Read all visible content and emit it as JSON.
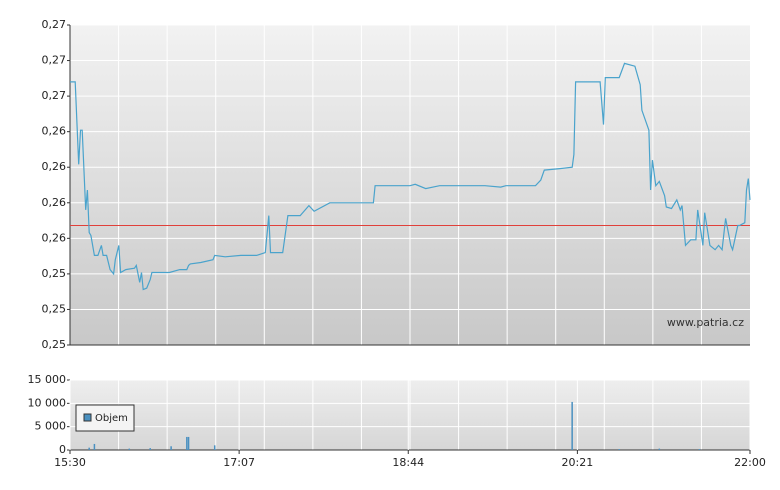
{
  "chart_data": [
    {
      "type": "line",
      "x": [
        "15:30",
        "15:33",
        "15:35",
        "15:36",
        "15:37",
        "15:39",
        "15:40",
        "15:41",
        "15:42",
        "15:44",
        "15:46",
        "15:48",
        "15:49",
        "15:51",
        "15:53",
        "15:55",
        "15:56",
        "15:58",
        "15:59",
        "16:02",
        "16:07",
        "16:08",
        "16:10",
        "16:11",
        "16:12",
        "16:14",
        "16:16",
        "16:17",
        "16:22",
        "16:27",
        "16:33",
        "16:37",
        "16:38",
        "16:39",
        "16:45",
        "16:52",
        "16:53",
        "16:59",
        "17:08",
        "17:17",
        "17:22",
        "17:24",
        "17:25",
        "17:32",
        "17:35",
        "17:42",
        "17:47",
        "17:50",
        "17:59",
        "18:05",
        "18:24",
        "18:25",
        "18:45",
        "18:48",
        "18:54",
        "19:02",
        "19:14",
        "19:28",
        "19:37",
        "19:40",
        "19:57",
        "20:00",
        "20:02",
        "20:11",
        "20:18",
        "20:19",
        "20:20",
        "20:34",
        "20:36",
        "20:37",
        "20:45",
        "20:48",
        "20:54",
        "20:57",
        "20:58",
        "21:02",
        "21:03",
        "21:04",
        "21:06",
        "21:08",
        "21:11",
        "21:12",
        "21:15",
        "21:18",
        "21:20",
        "21:21",
        "21:23",
        "21:26",
        "21:29",
        "21:30",
        "21:33",
        "21:34",
        "21:37",
        "21:40",
        "21:42",
        "21:44",
        "21:46",
        "21:49",
        "21:50",
        "21:53",
        "21:54",
        "21:57",
        "21:58",
        "21:59",
        "22:00"
      ],
      "series": [
        {
          "color": "#4aa3cc",
          "values": [
            0.2685,
            0.2685,
            0.2627,
            0.2651,
            0.2651,
            0.2595,
            0.2609,
            0.2579,
            0.2577,
            0.2563,
            0.2563,
            0.257,
            0.2563,
            0.2563,
            0.2553,
            0.255,
            0.256,
            0.257,
            0.2551,
            0.2553,
            0.2554,
            0.2556,
            0.2544,
            0.2551,
            0.2539,
            0.254,
            0.2546,
            0.2551,
            0.2551,
            0.2551,
            0.2553,
            0.2553,
            0.2556,
            0.2557,
            0.2558,
            0.256,
            0.2563,
            0.2562,
            0.2563,
            0.2563,
            0.2565,
            0.2591,
            0.2565,
            0.2565,
            0.2591,
            0.2591,
            0.2598,
            0.2594,
            0.26,
            0.26,
            0.26,
            0.2612,
            0.2612,
            0.2613,
            0.261,
            0.2612,
            0.2612,
            0.2612,
            0.2611,
            0.2612,
            0.2612,
            0.2616,
            0.2623,
            0.2624,
            0.2625,
            0.2634,
            0.2685,
            0.2685,
            0.2655,
            0.2688,
            0.2688,
            0.2698,
            0.2696,
            0.2683,
            0.2665,
            0.2651,
            0.2609,
            0.263,
            0.2612,
            0.2615,
            0.2605,
            0.2597,
            0.2596,
            0.2602,
            0.2595,
            0.2598,
            0.257,
            0.2574,
            0.2574,
            0.2595,
            0.257,
            0.2593,
            0.257,
            0.2567,
            0.257,
            0.2567,
            0.2589,
            0.257,
            0.2567,
            0.2584,
            0.2584,
            0.2586,
            0.2609,
            0.2617,
            0.2602
          ]
        }
      ],
      "xlim": [
        "15:30",
        "22:00"
      ],
      "ylim": [
        0.25,
        0.2725
      ],
      "yticks": [
        {
          "value": 0.25,
          "label": "0,25"
        },
        {
          "value": 0.2525,
          "label": "0,25"
        },
        {
          "value": 0.255,
          "label": "0,25"
        },
        {
          "value": 0.2575,
          "label": "0,26"
        },
        {
          "value": 0.26,
          "label": "0,26"
        },
        {
          "value": 0.2625,
          "label": "0,26"
        },
        {
          "value": 0.265,
          "label": "0,26"
        },
        {
          "value": 0.2675,
          "label": "0,27"
        },
        {
          "value": 0.27,
          "label": "0,27"
        },
        {
          "value": 0.2725,
          "label": "0,27"
        }
      ],
      "hline": {
        "value": 0.2584,
        "color": "#e0403a"
      },
      "watermark": "www.patria.cz",
      "grid": true
    },
    {
      "type": "bar",
      "x": [
        "15:41",
        "15:44",
        "16:04",
        "16:16",
        "16:28",
        "16:37",
        "16:38",
        "16:53",
        "20:18",
        "20:45",
        "21:08",
        "21:31"
      ],
      "series": [
        {
          "name": "Objem",
          "color": "#4a90c0",
          "values": [
            500,
            1300,
            300,
            400,
            800,
            2800,
            2800,
            1000,
            10300,
            200,
            300,
            200
          ]
        }
      ],
      "xlim": [
        "15:30",
        "22:00"
      ],
      "xticks": [
        "15:30",
        "17:07",
        "18:44",
        "20:21",
        "22:00"
      ],
      "ylim": [
        0,
        15000
      ],
      "yticks": [
        0,
        {
          "value": 5000,
          "label": "5 000"
        },
        {
          "value": 10000,
          "label": "10 000"
        },
        {
          "value": 15000,
          "label": "15 000"
        }
      ],
      "legend": "upper left",
      "grid": true
    }
  ]
}
